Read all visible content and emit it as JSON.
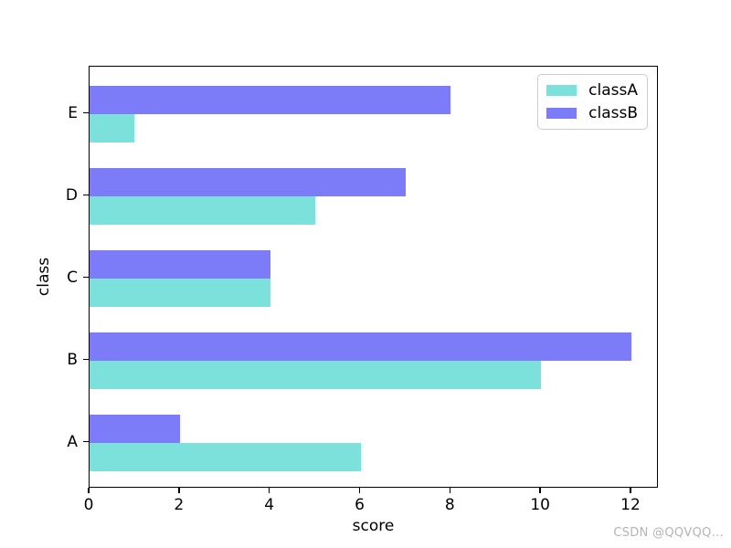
{
  "chart_data": {
    "type": "bar",
    "orientation": "horizontal",
    "title": "",
    "xlabel": "score",
    "ylabel": "class",
    "categories": [
      "A",
      "B",
      "C",
      "D",
      "E"
    ],
    "series": [
      {
        "name": "classA",
        "color": "#7ce0db",
        "values": [
          6,
          10,
          4,
          5,
          1
        ]
      },
      {
        "name": "classB",
        "color": "#7c7bf8",
        "values": [
          2,
          12,
          4,
          7,
          8
        ]
      }
    ],
    "xticks": [
      0,
      2,
      4,
      6,
      8,
      10,
      12
    ],
    "xlim": [
      0,
      12.6
    ],
    "grid": false,
    "legend_position": "upper right"
  },
  "watermark": "CSDN @QQVQQ..."
}
